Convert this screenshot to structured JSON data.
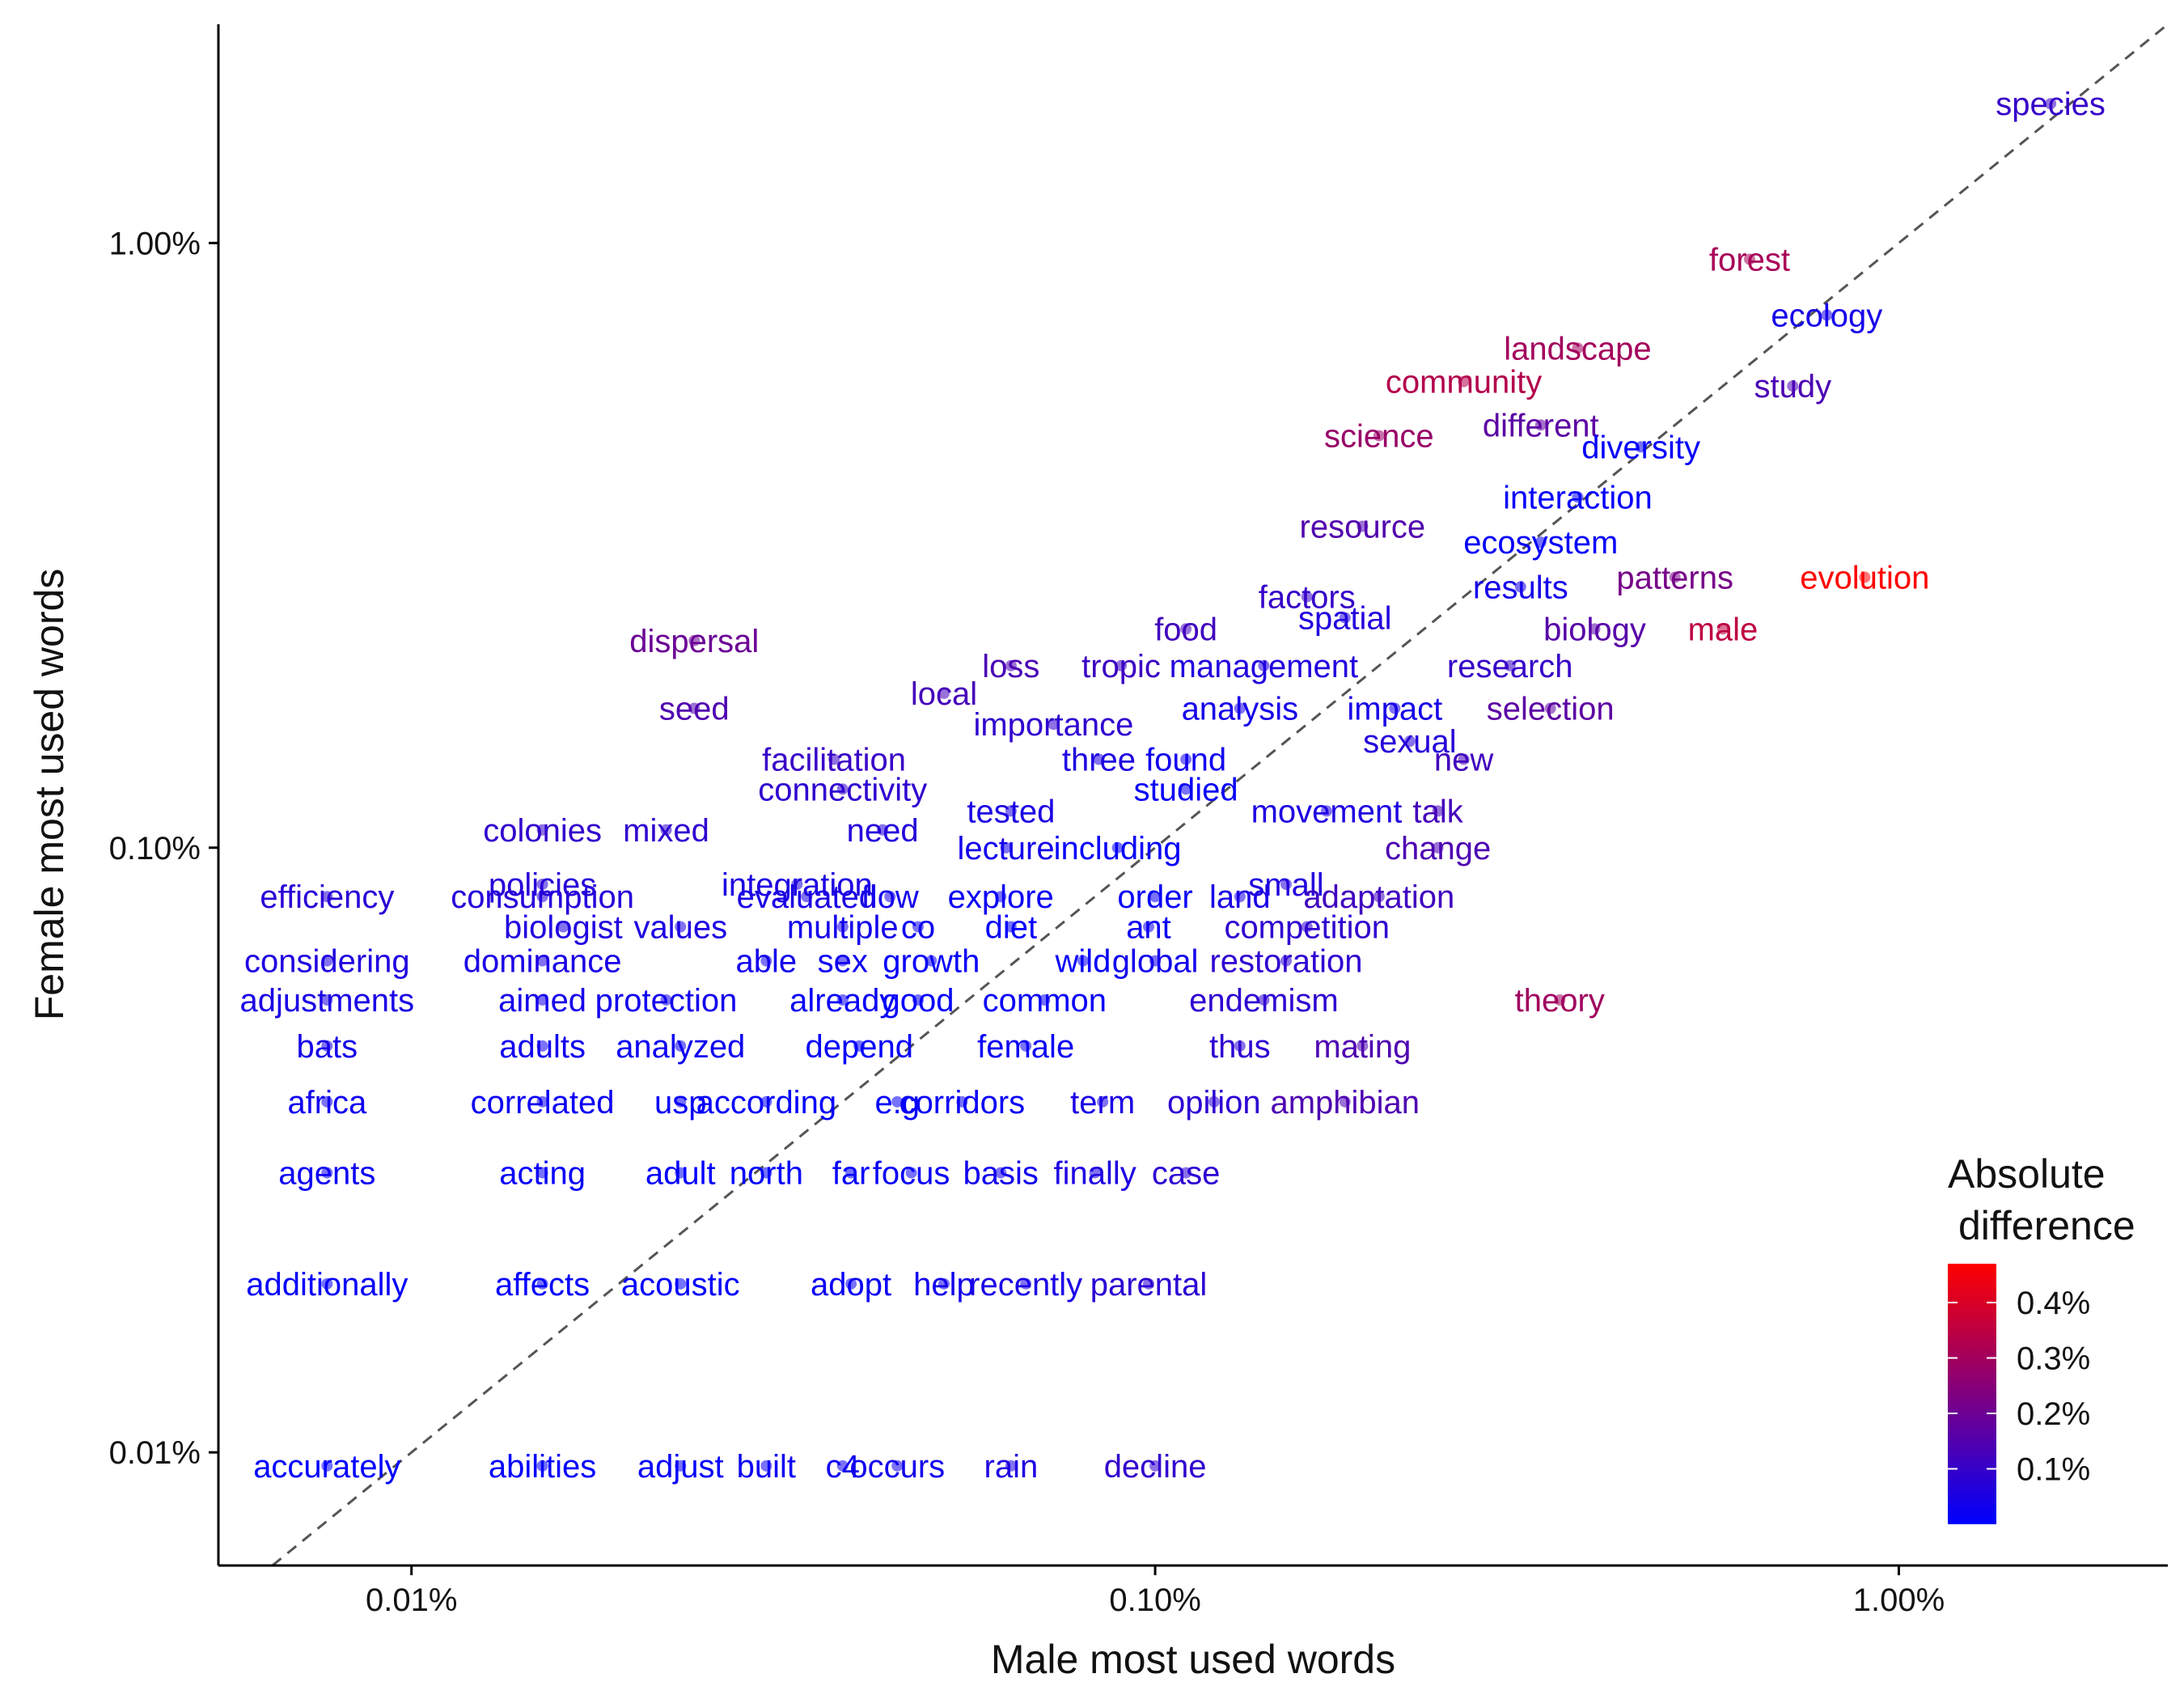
{
  "chart_data": {
    "type": "scatter",
    "title": "",
    "xlabel": "Male most used words",
    "ylabel": "Female most used words",
    "x_scale": "log10",
    "y_scale": "log10",
    "xlim": [
      0.0055,
      2.3
    ],
    "ylim": [
      0.0065,
      2.3
    ],
    "x_ticks": [
      {
        "value": 0.01,
        "label": "0.01%"
      },
      {
        "value": 0.1,
        "label": "0.10%"
      },
      {
        "value": 1,
        "label": "1.00%"
      }
    ],
    "y_ticks": [
      {
        "value": 0.01,
        "label": "0.01%"
      },
      {
        "value": 0.1,
        "label": "0.10%"
      },
      {
        "value": 1,
        "label": "1.00%"
      }
    ],
    "reference_line": "y = x (dashed)",
    "legend": {
      "title_lines": [
        "Absolute",
        "difference"
      ],
      "min": 0.0,
      "max": 0.47,
      "ticks": [
        {
          "value": 0.1,
          "label": "0.1%"
        },
        {
          "value": 0.2,
          "label": "0.2%"
        },
        {
          "value": 0.3,
          "label": "0.3%"
        },
        {
          "value": 0.4,
          "label": "0.4%"
        }
      ],
      "low_color": "#0000ff",
      "high_color": "#ff0000",
      "position": "bottom-right"
    },
    "words": [
      {
        "word": "species",
        "x": 1.6,
        "y": 1.7
      },
      {
        "word": "forest",
        "x": 0.63,
        "y": 0.94
      },
      {
        "word": "ecology",
        "x": 0.8,
        "y": 0.76
      },
      {
        "word": "landscape",
        "x": 0.37,
        "y": 0.67
      },
      {
        "word": "study",
        "x": 0.72,
        "y": 0.58
      },
      {
        "word": "community",
        "x": 0.26,
        "y": 0.59
      },
      {
        "word": "different",
        "x": 0.33,
        "y": 0.5
      },
      {
        "word": "science",
        "x": 0.2,
        "y": 0.48
      },
      {
        "word": "diversity",
        "x": 0.45,
        "y": 0.46
      },
      {
        "word": "interaction",
        "x": 0.37,
        "y": 0.38
      },
      {
        "word": "resource",
        "x": 0.19,
        "y": 0.34
      },
      {
        "word": "ecosystem",
        "x": 0.33,
        "y": 0.32
      },
      {
        "word": "patterns",
        "x": 0.5,
        "y": 0.28
      },
      {
        "word": "evolution",
        "x": 0.9,
        "y": 0.28
      },
      {
        "word": "results",
        "x": 0.31,
        "y": 0.27
      },
      {
        "word": "factors",
        "x": 0.16,
        "y": 0.26
      },
      {
        "word": "spatial",
        "x": 0.18,
        "y": 0.24
      },
      {
        "word": "food",
        "x": 0.11,
        "y": 0.23
      },
      {
        "word": "biology",
        "x": 0.39,
        "y": 0.23
      },
      {
        "word": "male",
        "x": 0.58,
        "y": 0.23
      },
      {
        "word": "dispersal",
        "x": 0.024,
        "y": 0.22
      },
      {
        "word": "loss",
        "x": 0.064,
        "y": 0.2
      },
      {
        "word": "tropic",
        "x": 0.09,
        "y": 0.2
      },
      {
        "word": "management",
        "x": 0.14,
        "y": 0.2
      },
      {
        "word": "research",
        "x": 0.3,
        "y": 0.2
      },
      {
        "word": "local",
        "x": 0.052,
        "y": 0.18
      },
      {
        "word": "seed",
        "x": 0.024,
        "y": 0.17
      },
      {
        "word": "analysis",
        "x": 0.13,
        "y": 0.17
      },
      {
        "word": "impact",
        "x": 0.21,
        "y": 0.17
      },
      {
        "word": "selection",
        "x": 0.34,
        "y": 0.17
      },
      {
        "word": "importance",
        "x": 0.073,
        "y": 0.16
      },
      {
        "word": "sexual",
        "x": 0.22,
        "y": 0.15
      },
      {
        "word": "facilitation",
        "x": 0.037,
        "y": 0.14
      },
      {
        "word": "three",
        "x": 0.084,
        "y": 0.14
      },
      {
        "word": "found",
        "x": 0.11,
        "y": 0.14
      },
      {
        "word": "new",
        "x": 0.26,
        "y": 0.14
      },
      {
        "word": "connectivity",
        "x": 0.038,
        "y": 0.125
      },
      {
        "word": "studied",
        "x": 0.11,
        "y": 0.125
      },
      {
        "word": "tested",
        "x": 0.064,
        "y": 0.115
      },
      {
        "word": "movement",
        "x": 0.17,
        "y": 0.115
      },
      {
        "word": "talk",
        "x": 0.24,
        "y": 0.115
      },
      {
        "word": "colonies",
        "x": 0.015,
        "y": 0.107
      },
      {
        "word": "mixed",
        "x": 0.022,
        "y": 0.107
      },
      {
        "word": "need",
        "x": 0.043,
        "y": 0.107
      },
      {
        "word": "lecture",
        "x": 0.063,
        "y": 0.1
      },
      {
        "word": "including",
        "x": 0.089,
        "y": 0.1
      },
      {
        "word": "change",
        "x": 0.24,
        "y": 0.1
      },
      {
        "word": "policies",
        "x": 0.015,
        "y": 0.087
      },
      {
        "word": "integration",
        "x": 0.033,
        "y": 0.087
      },
      {
        "word": "small",
        "x": 0.15,
        "y": 0.087
      },
      {
        "word": "efficiency",
        "x": 0.0077,
        "y": 0.083
      },
      {
        "word": "consumption",
        "x": 0.015,
        "y": 0.083
      },
      {
        "word": "evaluated",
        "x": 0.034,
        "y": 0.083
      },
      {
        "word": "flow",
        "x": 0.044,
        "y": 0.083
      },
      {
        "word": "explore",
        "x": 0.062,
        "y": 0.083
      },
      {
        "word": "order",
        "x": 0.1,
        "y": 0.083
      },
      {
        "word": "land",
        "x": 0.13,
        "y": 0.083
      },
      {
        "word": "adaptation",
        "x": 0.2,
        "y": 0.083
      },
      {
        "word": "biologist",
        "x": 0.016,
        "y": 0.074
      },
      {
        "word": "values",
        "x": 0.023,
        "y": 0.074
      },
      {
        "word": "multiple",
        "x": 0.038,
        "y": 0.074
      },
      {
        "word": "co",
        "x": 0.048,
        "y": 0.074
      },
      {
        "word": "diet",
        "x": 0.064,
        "y": 0.074
      },
      {
        "word": "ant",
        "x": 0.098,
        "y": 0.074
      },
      {
        "word": "competition",
        "x": 0.16,
        "y": 0.074
      },
      {
        "word": "considering",
        "x": 0.0077,
        "y": 0.065
      },
      {
        "word": "dominance",
        "x": 0.015,
        "y": 0.065
      },
      {
        "word": "able",
        "x": 0.03,
        "y": 0.065
      },
      {
        "word": "sex",
        "x": 0.038,
        "y": 0.065
      },
      {
        "word": "growth",
        "x": 0.05,
        "y": 0.065
      },
      {
        "word": "wild",
        "x": 0.08,
        "y": 0.065
      },
      {
        "word": "global",
        "x": 0.1,
        "y": 0.065
      },
      {
        "word": "restoration",
        "x": 0.15,
        "y": 0.065
      },
      {
        "word": "adjustments",
        "x": 0.0077,
        "y": 0.056
      },
      {
        "word": "aimed",
        "x": 0.015,
        "y": 0.056
      },
      {
        "word": "protection",
        "x": 0.022,
        "y": 0.056
      },
      {
        "word": "already",
        "x": 0.038,
        "y": 0.056
      },
      {
        "word": "good",
        "x": 0.048,
        "y": 0.056
      },
      {
        "word": "common",
        "x": 0.071,
        "y": 0.056
      },
      {
        "word": "endemism",
        "x": 0.14,
        "y": 0.056
      },
      {
        "word": "theory",
        "x": 0.35,
        "y": 0.056
      },
      {
        "word": "bats",
        "x": 0.0077,
        "y": 0.047
      },
      {
        "word": "adults",
        "x": 0.015,
        "y": 0.047
      },
      {
        "word": "analyzed",
        "x": 0.023,
        "y": 0.047
      },
      {
        "word": "depend",
        "x": 0.04,
        "y": 0.047
      },
      {
        "word": "female",
        "x": 0.067,
        "y": 0.047
      },
      {
        "word": "thus",
        "x": 0.13,
        "y": 0.047
      },
      {
        "word": "mating",
        "x": 0.19,
        "y": 0.047
      },
      {
        "word": "africa",
        "x": 0.0077,
        "y": 0.038
      },
      {
        "word": "correlated",
        "x": 0.015,
        "y": 0.038
      },
      {
        "word": "usp",
        "x": 0.023,
        "y": 0.038
      },
      {
        "word": "according",
        "x": 0.03,
        "y": 0.038
      },
      {
        "word": "e.g",
        "x": 0.045,
        "y": 0.038
      },
      {
        "word": "corridors",
        "x": 0.055,
        "y": 0.038
      },
      {
        "word": "term",
        "x": 0.085,
        "y": 0.038
      },
      {
        "word": "opilion",
        "x": 0.12,
        "y": 0.038
      },
      {
        "word": "amphibian",
        "x": 0.18,
        "y": 0.038
      },
      {
        "word": "agents",
        "x": 0.0077,
        "y": 0.029
      },
      {
        "word": "acting",
        "x": 0.015,
        "y": 0.029
      },
      {
        "word": "adult",
        "x": 0.023,
        "y": 0.029
      },
      {
        "word": "north",
        "x": 0.03,
        "y": 0.029
      },
      {
        "word": "far",
        "x": 0.039,
        "y": 0.029
      },
      {
        "word": "focus",
        "x": 0.047,
        "y": 0.029
      },
      {
        "word": "basis",
        "x": 0.062,
        "y": 0.029
      },
      {
        "word": "finally",
        "x": 0.083,
        "y": 0.029
      },
      {
        "word": "case",
        "x": 0.11,
        "y": 0.029
      },
      {
        "word": "additionally",
        "x": 0.0077,
        "y": 0.019
      },
      {
        "word": "affects",
        "x": 0.015,
        "y": 0.019
      },
      {
        "word": "acoustic",
        "x": 0.023,
        "y": 0.019
      },
      {
        "word": "adopt",
        "x": 0.039,
        "y": 0.019
      },
      {
        "word": "help",
        "x": 0.052,
        "y": 0.019
      },
      {
        "word": "recently",
        "x": 0.067,
        "y": 0.019
      },
      {
        "word": "parental",
        "x": 0.098,
        "y": 0.019
      },
      {
        "word": "accurately",
        "x": 0.0077,
        "y": 0.0095
      },
      {
        "word": "abilities",
        "x": 0.015,
        "y": 0.0095
      },
      {
        "word": "adjust",
        "x": 0.023,
        "y": 0.0095
      },
      {
        "word": "built",
        "x": 0.03,
        "y": 0.0095
      },
      {
        "word": "c4",
        "x": 0.038,
        "y": 0.0095
      },
      {
        "word": "occurs",
        "x": 0.045,
        "y": 0.0095
      },
      {
        "word": "rain",
        "x": 0.064,
        "y": 0.0095
      },
      {
        "word": "decline",
        "x": 0.1,
        "y": 0.0095
      }
    ]
  }
}
